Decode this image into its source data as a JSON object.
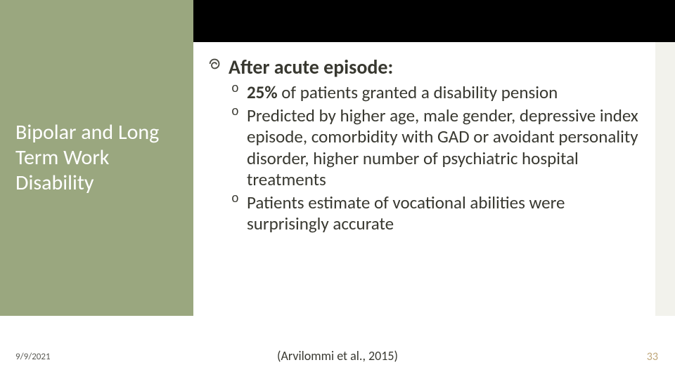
{
  "theme": {
    "accent_color": "#9aa77f",
    "topbar_color": "#000000",
    "text_color": "#383830",
    "pagenum_color": "#bfa77a",
    "rightstrip_color": "#f2f2ec"
  },
  "left_title": "Bipolar and Long Term Work Disability",
  "main_heading": "After acute episode:",
  "sub_bullets": [
    {
      "bold_lead": "25%",
      "rest": " of patients granted a disability pension"
    },
    {
      "bold_lead": "",
      "rest": "Predicted by higher age, male gender, depressive index episode, comorbidity with GAD or avoidant personality disorder, higher number of psychiatric hospital treatments"
    },
    {
      "bold_lead": "",
      "rest": "Patients estimate of vocational abilities were surprisingly accurate"
    }
  ],
  "citation": "(Arvilommi et al., 2015)",
  "date": "9/9/2021",
  "page_number": "33"
}
